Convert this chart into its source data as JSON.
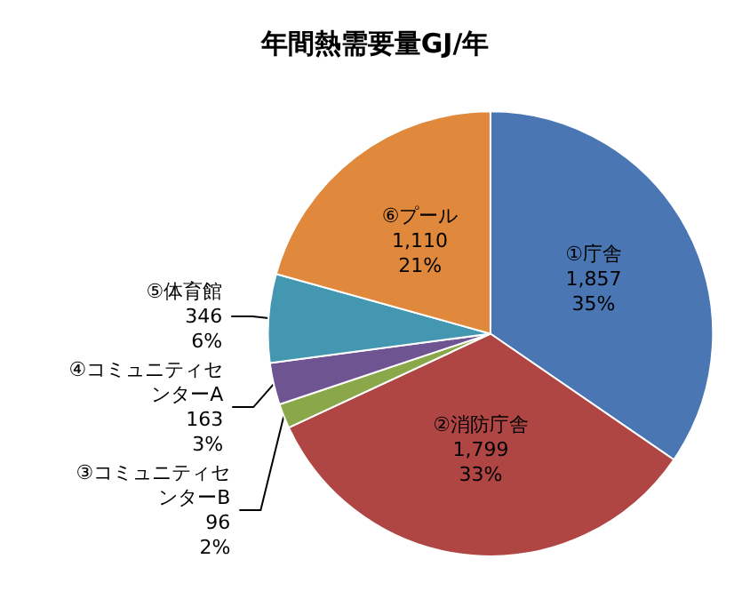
{
  "chart_data": {
    "type": "pie",
    "title": "年間熱需要量GJ/年",
    "categories": [
      "①庁舎",
      "②消防庁舎",
      "③コミュニティセンターB",
      "④コミュニティセンターA",
      "⑤体育館",
      "⑥プール"
    ],
    "values": [
      1857,
      1799,
      96,
      163,
      346,
      1110
    ],
    "value_labels": [
      "1,857\n35%",
      "1,799\n33%",
      "96\n2%",
      "163\n3%",
      "346\n6%",
      "1,110\n21%"
    ],
    "colors": [
      "#4a77b4",
      "#b04643",
      "#8aa84a",
      "#6e5592",
      "#4397b0",
      "#e0883b"
    ],
    "legend": false
  }
}
